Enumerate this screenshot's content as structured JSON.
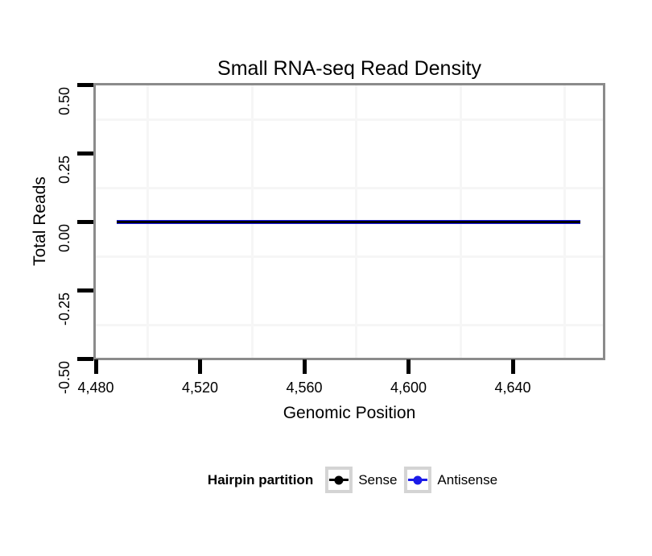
{
  "title": "Small RNA-seq Read Density",
  "chart_data": {
    "type": "line",
    "title": "Small RNA-seq Read Density",
    "xlabel": "Genomic Position",
    "ylabel": "Total Reads",
    "xlim": [
      4479,
      4675
    ],
    "ylim": [
      -0.5,
      0.5
    ],
    "grid": "minor-only-very-light",
    "x_ticks": [
      {
        "value": 4480,
        "label": "4,480"
      },
      {
        "value": 4520,
        "label": "4,520"
      },
      {
        "value": 4560,
        "label": "4,560"
      },
      {
        "value": 4600,
        "label": "4,600"
      },
      {
        "value": 4640,
        "label": "4,640"
      }
    ],
    "x_minor_gridlines": [
      4500,
      4540,
      4580,
      4620,
      4660
    ],
    "y_ticks": [
      {
        "value": 0.5,
        "label": "0.50"
      },
      {
        "value": 0.25,
        "label": "0.25"
      },
      {
        "value": 0.0,
        "label": "0.00"
      },
      {
        "value": -0.25,
        "label": "-0.25"
      },
      {
        "value": -0.5,
        "label": "-0.50"
      }
    ],
    "y_minor_gridlines": [
      0.375,
      0.125,
      -0.125,
      -0.375
    ],
    "series": [
      {
        "name": "Antisense",
        "color": "#1b1be8",
        "x": [
          4488,
          4666
        ],
        "y": [
          0,
          0
        ]
      },
      {
        "name": "Sense",
        "color": "#000000",
        "x": [
          4488,
          4666
        ],
        "y": [
          0,
          0
        ]
      }
    ],
    "legend": {
      "title": "Hairpin partition",
      "position": "bottom",
      "entries": [
        {
          "label": "Sense",
          "color": "#000000"
        },
        {
          "label": "Antisense",
          "color": "#1b1be8"
        }
      ]
    }
  },
  "colors": {
    "panel_border": "#8b8b8b",
    "tick": "#000000",
    "minor_grid": "#f6f6f6",
    "legend_key_border": "#d4d4d4",
    "background": "#ffffff"
  }
}
